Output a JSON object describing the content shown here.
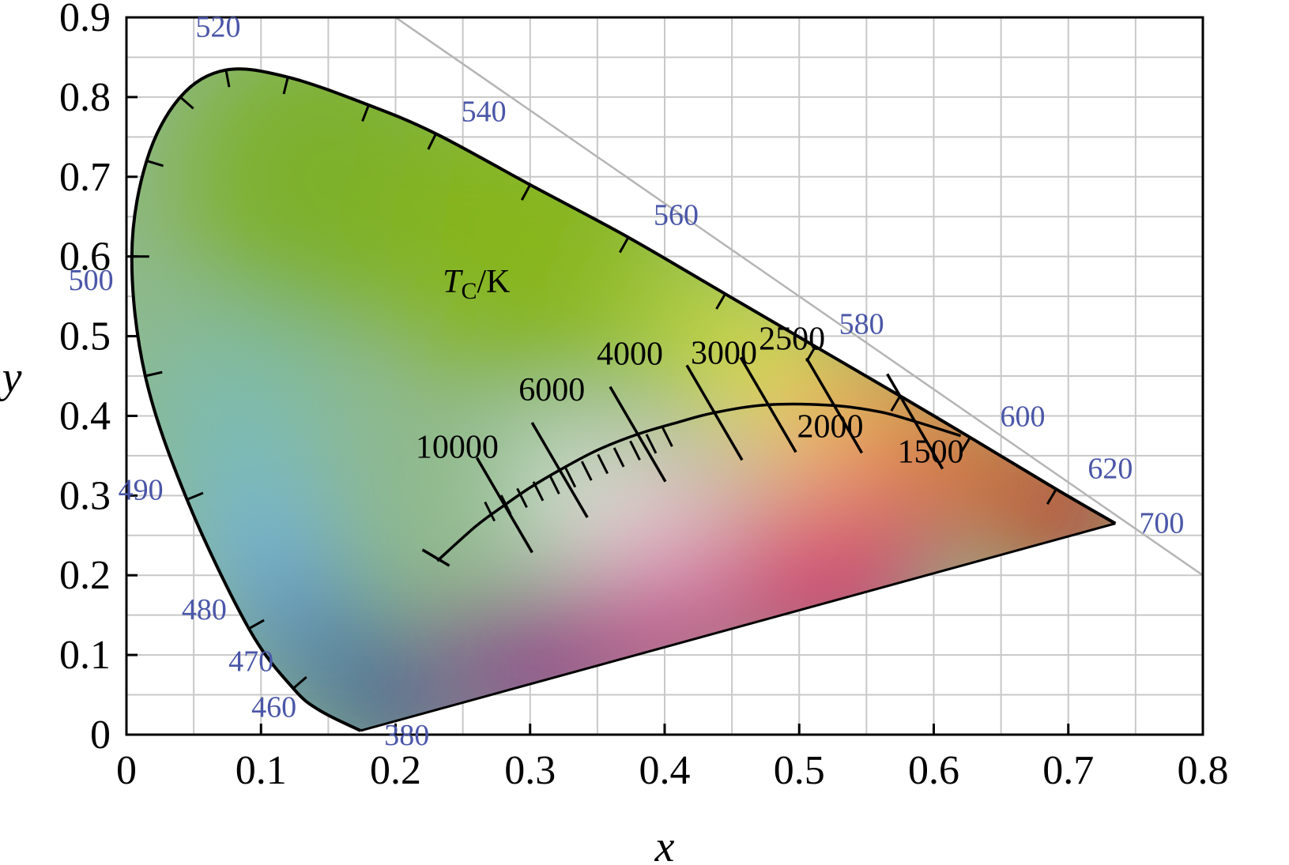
{
  "chart_data": {
    "type": "scatter",
    "title": "",
    "xlabel": "x",
    "ylabel": "y",
    "xlim": [
      0,
      0.8
    ],
    "ylim": [
      0,
      0.9
    ],
    "grid": true,
    "x_ticks": [
      "0",
      "0.1",
      "0.2",
      "0.3",
      "0.4",
      "0.5",
      "0.6",
      "0.7",
      "0.8"
    ],
    "y_ticks": [
      "0",
      "0.1",
      "0.2",
      "0.3",
      "0.4",
      "0.5",
      "0.6",
      "0.7",
      "0.8",
      "0.9"
    ],
    "annotation": {
      "t": "T",
      "sub": "C",
      "unit": "/K"
    },
    "spectral_locus": [
      {
        "label": "380",
        "x": 0.174,
        "y": 0.005
      },
      {
        "label": "460",
        "x": 0.144,
        "y": 0.03
      },
      {
        "label": "470",
        "x": 0.124,
        "y": 0.058
      },
      {
        "label": "480",
        "x": 0.091,
        "y": 0.133
      },
      {
        "label": "490",
        "x": 0.045,
        "y": 0.295
      },
      {
        "label": "500",
        "x": 0.008,
        "y": 0.538
      },
      {
        "label": "520",
        "x": 0.074,
        "y": 0.834
      },
      {
        "label": "540",
        "x": 0.23,
        "y": 0.754
      },
      {
        "label": "560",
        "x": 0.373,
        "y": 0.624
      },
      {
        "label": "580",
        "x": 0.512,
        "y": 0.487
      },
      {
        "label": "600",
        "x": 0.627,
        "y": 0.373
      },
      {
        "label": "620",
        "x": 0.691,
        "y": 0.308
      },
      {
        "label": "700",
        "x": 0.735,
        "y": 0.265
      }
    ],
    "planckian_locus": [
      {
        "label": "10000",
        "x": 0.281,
        "y": 0.288
      },
      {
        "label": "6000",
        "x": 0.322,
        "y": 0.332
      },
      {
        "label": "4000",
        "x": 0.38,
        "y": 0.377
      },
      {
        "label": "3000",
        "x": 0.437,
        "y": 0.404
      },
      {
        "label": "2500",
        "x": 0.477,
        "y": 0.414
      },
      {
        "label": "2000",
        "x": 0.526,
        "y": 0.413
      },
      {
        "label": "1500",
        "x": 0.586,
        "y": 0.393
      }
    ]
  }
}
